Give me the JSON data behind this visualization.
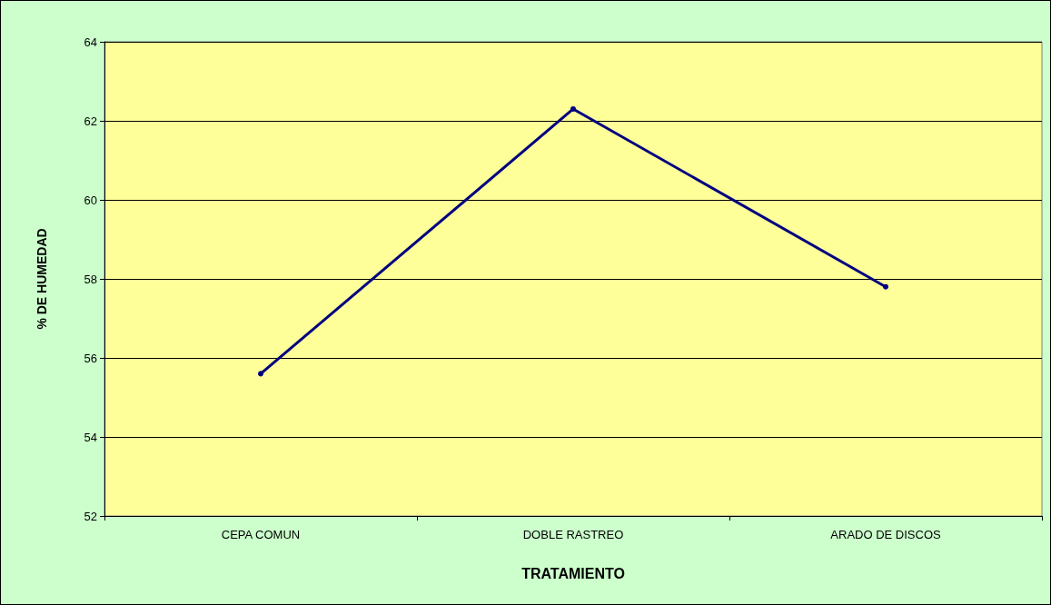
{
  "chart_data": {
    "type": "line",
    "xlabel": "TRATAMIENTO",
    "ylabel": "% DE HUMEDAD",
    "categories": [
      "CEPA COMUN",
      "DOBLE RASTREO",
      "ARADO DE DISCOS"
    ],
    "series": [
      {
        "color": "#000080",
        "values": [
          55.6,
          62.3,
          57.8
        ]
      }
    ],
    "ylim": [
      52,
      64
    ],
    "yticks": [
      52,
      54,
      56,
      58,
      60,
      62,
      64
    ],
    "grid": "y",
    "marker": "circle",
    "line_style": "solid"
  }
}
